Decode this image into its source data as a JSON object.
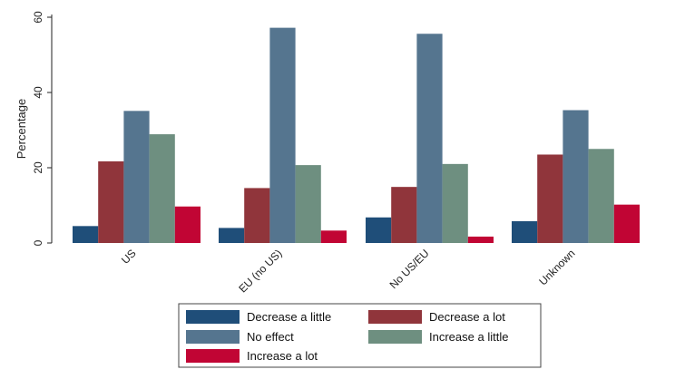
{
  "chart_data": {
    "type": "bar",
    "title": "",
    "xlabel": "",
    "ylabel": "Percentage",
    "ylim": [
      0,
      60
    ],
    "yticks": [
      0,
      20,
      40,
      60
    ],
    "grid": false,
    "legend_position": "bottom",
    "categories": [
      "US",
      "EU (no US)",
      "No US/EU",
      "Unknown"
    ],
    "series": [
      {
        "name": "Decrease a little",
        "color": "#1f4e79",
        "values": [
          4.5,
          4.0,
          6.8,
          5.8
        ]
      },
      {
        "name": "Decrease a lot",
        "color": "#90353b",
        "values": [
          21.7,
          14.6,
          14.9,
          23.5
        ]
      },
      {
        "name": "No effect",
        "color": "#55758f",
        "values": [
          35.1,
          57.2,
          55.6,
          35.3
        ]
      },
      {
        "name": "Increase a little",
        "color": "#6e8f80",
        "values": [
          28.9,
          20.7,
          21.0,
          25.0
        ]
      },
      {
        "name": "Increase a lot",
        "color": "#c10534",
        "values": [
          9.7,
          3.3,
          1.7,
          10.2
        ]
      }
    ]
  }
}
